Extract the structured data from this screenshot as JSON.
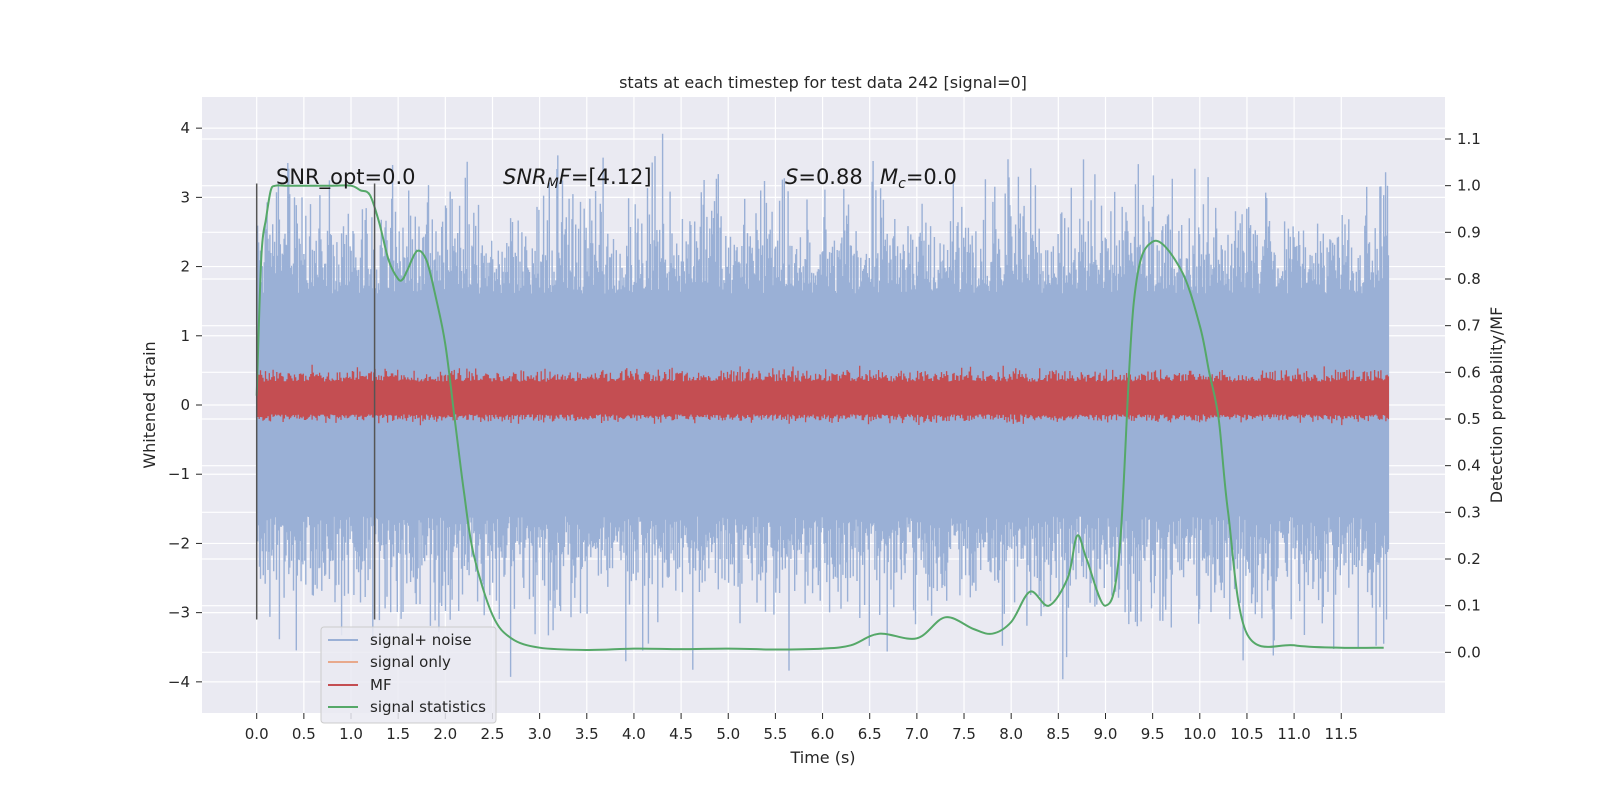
{
  "chart_data": {
    "type": "line",
    "title": "stats at each timestep for test data 242 [signal=0]",
    "xlabel": "Time (s)",
    "ylabel": "Whitened strain",
    "y2label": "Detection probability/MF",
    "xlim": [
      -0.58,
      12.6
    ],
    "ylim": [
      -4.45,
      4.45
    ],
    "y2lim": [
      -0.13,
      1.19
    ],
    "x_ticks": [
      0.0,
      0.5,
      1.0,
      1.5,
      2.0,
      2.5,
      3.0,
      3.5,
      4.0,
      4.5,
      5.0,
      5.5,
      6.0,
      6.5,
      7.0,
      7.5,
      8.0,
      8.5,
      9.0,
      9.5,
      10.0,
      10.5,
      11.0,
      11.5
    ],
    "x_tick_labels": [
      "0.0",
      "0.5",
      "1.0",
      "1.5",
      "2.0",
      "2.5",
      "3.0",
      "3.5",
      "4.0",
      "4.5",
      "5.0",
      "5.5",
      "6.0",
      "6.5",
      "7.0",
      "7.5",
      "8.0",
      "8.5",
      "9.0",
      "9.5",
      "10.0",
      "10.5",
      "11.0",
      "11.5"
    ],
    "y_ticks": [
      -4,
      -3,
      -2,
      -1,
      0,
      1,
      2,
      3,
      4
    ],
    "y_tick_labels": [
      "−4",
      "−3",
      "−2",
      "−1",
      "0",
      "1",
      "2",
      "3",
      "4"
    ],
    "y2_ticks": [
      0.0,
      0.1,
      0.2,
      0.3,
      0.4,
      0.5,
      0.6,
      0.7,
      0.8,
      0.9,
      1.0,
      1.1
    ],
    "y2_tick_labels": [
      "0.0",
      "0.1",
      "0.2",
      "0.3",
      "0.4",
      "0.5",
      "0.6",
      "0.7",
      "0.8",
      "0.9",
      "1.0",
      "1.1"
    ],
    "grid": true,
    "legend_position": "lower-left",
    "series": [
      {
        "name": "signal+ noise",
        "axis": "left",
        "color": "#9ab0d6",
        "x_range": [
          0.0,
          12.0
        ],
        "core_band": [
          -1.3,
          1.3
        ],
        "typical_envelope": [
          -2.3,
          2.3
        ],
        "max": 4.1,
        "min": -4.0,
        "description": "noise-like whitened strain"
      },
      {
        "name": "signal only",
        "axis": "left",
        "color": "#e8a98c",
        "values": "zero (no signal injected)"
      },
      {
        "name": "MF",
        "axis": "right",
        "color": "#c44e52",
        "x_range": [
          0.0,
          12.0
        ],
        "band": [
          0.51,
          0.58
        ],
        "max": 0.66,
        "min": 0.48
      },
      {
        "name": "signal statistics",
        "axis": "right",
        "color": "#55a868",
        "x": [
          0.0,
          0.05,
          0.1,
          0.15,
          0.2,
          0.3,
          0.5,
          0.8,
          1.0,
          1.1,
          1.2,
          1.3,
          1.4,
          1.5,
          1.55,
          1.6,
          1.7,
          1.8,
          1.9,
          2.0,
          2.1,
          2.2,
          2.3,
          2.5,
          2.7,
          3.0,
          3.5,
          4.0,
          4.5,
          5.0,
          5.5,
          6.0,
          6.3,
          6.6,
          7.0,
          7.3,
          7.6,
          7.8,
          8.0,
          8.2,
          8.4,
          8.6,
          8.7,
          8.8,
          9.0,
          9.15,
          9.3,
          9.5,
          9.8,
          10.0,
          10.1,
          10.2,
          10.3,
          10.5,
          11.0,
          11.5,
          11.95
        ],
        "values": [
          0.55,
          0.85,
          0.93,
          0.99,
          1.0,
          1.0,
          1.0,
          1.0,
          1.0,
          0.99,
          0.98,
          0.92,
          0.84,
          0.8,
          0.8,
          0.82,
          0.86,
          0.84,
          0.76,
          0.66,
          0.5,
          0.34,
          0.21,
          0.08,
          0.03,
          0.01,
          0.005,
          0.008,
          0.007,
          0.008,
          0.006,
          0.008,
          0.015,
          0.04,
          0.03,
          0.075,
          0.05,
          0.04,
          0.065,
          0.13,
          0.1,
          0.16,
          0.25,
          0.2,
          0.1,
          0.22,
          0.75,
          0.88,
          0.82,
          0.7,
          0.6,
          0.5,
          0.3,
          0.04,
          0.015,
          0.01,
          0.01
        ]
      }
    ],
    "vertical_lines_x": [
      0.0,
      1.25
    ],
    "annotations": {
      "snr_opt": "SNR_opt=0.0",
      "snr_mf_label": "SNR",
      "snr_mf_sub": "M",
      "snr_mf_tail": "F",
      "snr_mf_value": "=[4.12]",
      "s_label": "S",
      "s_value": "=0.88",
      "mc_label": "M",
      "mc_sub": "c",
      "mc_value": "=0.0"
    }
  }
}
